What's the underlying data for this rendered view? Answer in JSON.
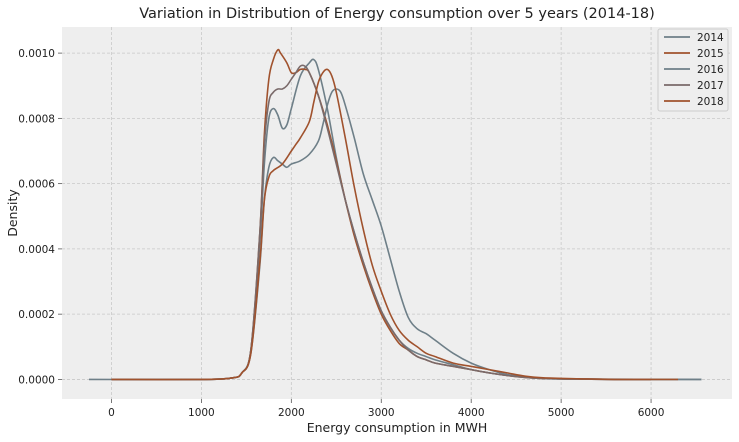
{
  "chart_data": {
    "type": "line",
    "title": "Variation in Distribution of Energy consumption over 5 years (2014-18)",
    "xlabel": "Energy consumption in MWH",
    "ylabel": "Density",
    "xlim": [
      -550,
      6900
    ],
    "ylim": [
      -6e-05,
      0.00108
    ],
    "x_ticks": [
      0,
      1000,
      2000,
      3000,
      4000,
      5000,
      6000
    ],
    "x_tick_labels": [
      "0",
      "1000",
      "2000",
      "3000",
      "4000",
      "5000",
      "6000"
    ],
    "y_ticks": [
      0,
      0.0002,
      0.0004,
      0.0006,
      0.0008,
      0.001
    ],
    "y_tick_labels": [
      "0.0000",
      "0.0002",
      "0.0004",
      "0.0006",
      "0.0008",
      "0.0010"
    ],
    "grid": true,
    "legend_position": "top-right",
    "series": [
      {
        "name": "2014",
        "color": "#6e7f88",
        "x": [
          -250,
          1000,
          1350,
          1450,
          1550,
          1650,
          1700,
          1750,
          1800,
          1850,
          1900,
          1950,
          2000,
          2100,
          2200,
          2250,
          2300,
          2400,
          2500,
          2600,
          2700,
          2800,
          2900,
          3000,
          3100,
          3200,
          3300,
          3400,
          3500,
          3600,
          3800,
          4000,
          4200,
          4400,
          4600,
          4800,
          5200,
          5600,
          6000,
          6560
        ],
        "y": [
          0,
          0,
          5e-06,
          2e-05,
          9e-05,
          0.00042,
          0.00066,
          0.0008,
          0.00083,
          0.00081,
          0.00077,
          0.00078,
          0.00083,
          0.00093,
          0.00097,
          0.00098,
          0.00095,
          0.00083,
          0.00068,
          0.00055,
          0.00045,
          0.00036,
          0.00028,
          0.00021,
          0.00016,
          0.00012,
          9.5e-05,
          8e-05,
          7e-05,
          6e-05,
          4.5e-05,
          3e-05,
          2e-05,
          1.2e-05,
          7e-06,
          3e-06,
          1e-06,
          0,
          0,
          0
        ]
      },
      {
        "name": "2015",
        "color": "#a0522d",
        "x": [
          0,
          1000,
          1350,
          1450,
          1550,
          1650,
          1700,
          1750,
          1800,
          1850,
          1880,
          1950,
          2000,
          2050,
          2100,
          2150,
          2200,
          2300,
          2400,
          2500,
          2600,
          2700,
          2800,
          2900,
          3000,
          3100,
          3200,
          3300,
          3400,
          3500,
          3600,
          3800,
          4000,
          4200,
          4400,
          4600,
          4800,
          5200,
          5600,
          6000
        ],
        "y": [
          0,
          0,
          5e-06,
          2e-05,
          9e-05,
          0.00045,
          0.00075,
          0.00092,
          0.00098,
          0.00101,
          0.001,
          0.00097,
          0.00094,
          0.00094,
          0.00095,
          0.00095,
          0.00094,
          0.00087,
          0.00078,
          0.00067,
          0.00055,
          0.00044,
          0.00035,
          0.00027,
          0.0002,
          0.00015,
          0.00011,
          9e-05,
          7e-05,
          6e-05,
          5e-05,
          4e-05,
          3e-05,
          2e-05,
          1.2e-05,
          6e-06,
          3e-06,
          1e-06,
          0,
          0
        ]
      },
      {
        "name": "2016",
        "color": "#6e7f88",
        "x": [
          0,
          1000,
          1350,
          1450,
          1550,
          1650,
          1700,
          1750,
          1800,
          1850,
          1900,
          1950,
          2000,
          2100,
          2200,
          2300,
          2350,
          2400,
          2450,
          2500,
          2550,
          2600,
          2700,
          2800,
          2900,
          3000,
          3100,
          3200,
          3300,
          3400,
          3500,
          3600,
          3800,
          4000,
          4200,
          4400,
          4600,
          4800,
          5200,
          6560
        ],
        "y": [
          0,
          0,
          5e-06,
          2e-05,
          8e-05,
          0.00035,
          0.00055,
          0.00065,
          0.00068,
          0.00067,
          0.00066,
          0.00065,
          0.00066,
          0.00067,
          0.00069,
          0.00073,
          0.00078,
          0.00084,
          0.00088,
          0.00089,
          0.00088,
          0.00084,
          0.00074,
          0.00063,
          0.00055,
          0.00047,
          0.00037,
          0.00027,
          0.00019,
          0.000155,
          0.00014,
          0.00012,
          8e-05,
          5e-05,
          3e-05,
          1.5e-05,
          8e-06,
          3e-06,
          1e-06,
          0
        ]
      },
      {
        "name": "2017",
        "color": "#7a6a6a",
        "x": [
          0,
          1000,
          1350,
          1450,
          1550,
          1650,
          1700,
          1750,
          1800,
          1850,
          1900,
          1950,
          2000,
          2050,
          2100,
          2150,
          2200,
          2300,
          2400,
          2500,
          2600,
          2700,
          2800,
          2900,
          3000,
          3100,
          3200,
          3300,
          3400,
          3500,
          3600,
          3800,
          4000,
          4200,
          4400,
          4600,
          4800,
          5200,
          5600,
          6000
        ],
        "y": [
          0,
          0,
          5e-06,
          2e-05,
          9e-05,
          0.00045,
          0.00072,
          0.00085,
          0.00088,
          0.00089,
          0.00089,
          0.0009,
          0.00092,
          0.00094,
          0.00096,
          0.00096,
          0.00094,
          0.00087,
          0.00077,
          0.00066,
          0.00055,
          0.00045,
          0.00036,
          0.00028,
          0.00021,
          0.00016,
          0.00012,
          9e-05,
          7e-05,
          6e-05,
          5e-05,
          4e-05,
          3e-05,
          2e-05,
          1.2e-05,
          6e-06,
          3e-06,
          1e-06,
          0,
          0
        ]
      },
      {
        "name": "2018",
        "color": "#a0522d",
        "x": [
          0,
          1000,
          1350,
          1450,
          1550,
          1650,
          1700,
          1750,
          1800,
          1900,
          2000,
          2050,
          2100,
          2200,
          2250,
          2300,
          2350,
          2400,
          2450,
          2500,
          2600,
          2700,
          2800,
          2900,
          3000,
          3100,
          3200,
          3300,
          3400,
          3500,
          3600,
          3800,
          4000,
          4200,
          4400,
          4600,
          4800,
          5200,
          5600,
          6300
        ],
        "y": [
          0,
          0,
          5e-06,
          2e-05,
          8e-05,
          0.00036,
          0.00055,
          0.00062,
          0.00064,
          0.00066,
          0.0007,
          0.00072,
          0.00074,
          0.00079,
          0.00085,
          0.00091,
          0.00094,
          0.00095,
          0.00093,
          0.00088,
          0.00074,
          0.00059,
          0.00046,
          0.00035,
          0.00027,
          0.0002,
          0.00015,
          0.00012,
          0.0001,
          8e-05,
          7e-05,
          5e-05,
          4e-05,
          3e-05,
          2e-05,
          1e-05,
          5e-06,
          2e-06,
          0,
          0
        ]
      }
    ]
  }
}
